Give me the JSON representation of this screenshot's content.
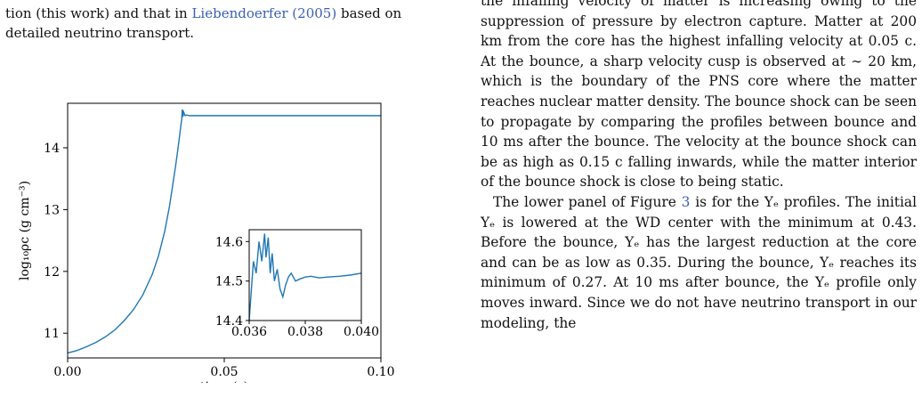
{
  "left_column": {
    "text_line1_prefix": "tion (this work) and that in ",
    "citation_author": "Liebendoerfer",
    "citation_year": "2005",
    "text_line1_suffix": " based on",
    "text_line2": "detailed neutrino transport."
  },
  "right_column": {
    "paragraph1": "the infalling velocity of matter is increasing owing to the suppression of pressure by electron capture. Matter at 200 km from the core has the highest infalling velocity at 0.05 c. At the bounce, a sharp velocity cusp is observed at ∼ 20 km, which is the boundary of the PNS core where the matter reaches nuclear matter density. The bounce shock can be seen to propagate by comparing the profiles between bounce and 10 ms after the bounce. The velocity at the bounce shock can be as high as 0.15 c falling inwards, while the matter interior of the bounce shock is close to being static.",
    "paragraph2_a": "The lower panel of Figure ",
    "paragraph2_figref": "3",
    "paragraph2_b": " is for the Yₑ profiles. The initial Yₑ is lowered at the WD center with the minimum at 0.43. Before the bounce, Yₑ has the largest reduction at the core and can be as low as 0.35. During the bounce, Yₑ reaches its minimum of 0.27. At 10 ms after bounce, the Yₑ profile only moves inward. Since we do not have neutrino transport in our modeling, the"
  },
  "chart_data": {
    "type": "line",
    "xlabel": "time (s)",
    "ylabel": "log₁₀ρc (g cm⁻³)",
    "xlim": [
      0.0,
      0.1
    ],
    "ylim": [
      10.6,
      14.72
    ],
    "x_ticks": [
      "0.00",
      "0.05",
      "0.10"
    ],
    "y_ticks": [
      "11",
      "12",
      "13",
      "14"
    ],
    "series_color": "#1f77b4",
    "series": [
      {
        "x": [
          0.0,
          0.003,
          0.006,
          0.009,
          0.012,
          0.015,
          0.018,
          0.021,
          0.024,
          0.027,
          0.029,
          0.031,
          0.0325,
          0.0335,
          0.0345,
          0.0352,
          0.0358,
          0.0362,
          0.0364,
          0.0366,
          0.0368,
          0.037,
          0.0375,
          0.038,
          0.039,
          0.04,
          0.06,
          0.08,
          0.1
        ],
        "y": [
          10.68,
          10.72,
          10.78,
          10.85,
          10.94,
          11.05,
          11.2,
          11.38,
          11.62,
          11.95,
          12.25,
          12.65,
          13.05,
          13.38,
          13.72,
          13.98,
          14.22,
          14.38,
          14.45,
          14.62,
          14.5,
          14.58,
          14.52,
          14.53,
          14.52,
          14.52,
          14.52,
          14.52,
          14.52
        ]
      }
    ],
    "inset": {
      "xlim": [
        0.036,
        0.04
      ],
      "ylim": [
        14.4,
        14.63
      ],
      "x_ticks": [
        "0.036",
        "0.038",
        "0.040"
      ],
      "y_ticks": [
        "14.4",
        "14.5",
        "14.6"
      ],
      "x": [
        0.036,
        0.03615,
        0.03625,
        0.03635,
        0.03645,
        0.03655,
        0.0366,
        0.03668,
        0.03675,
        0.03682,
        0.0369,
        0.037,
        0.0371,
        0.0372,
        0.0373,
        0.0374,
        0.0375,
        0.03765,
        0.0378,
        0.038,
        0.0382,
        0.0385,
        0.0388,
        0.0392,
        0.0396,
        0.04
      ],
      "y": [
        14.4,
        14.55,
        14.52,
        14.6,
        14.55,
        14.62,
        14.56,
        14.61,
        14.52,
        14.57,
        14.5,
        14.53,
        14.48,
        14.46,
        14.49,
        14.51,
        14.52,
        14.5,
        14.505,
        14.51,
        14.512,
        14.508,
        14.51,
        14.512,
        14.515,
        14.52
      ]
    }
  }
}
